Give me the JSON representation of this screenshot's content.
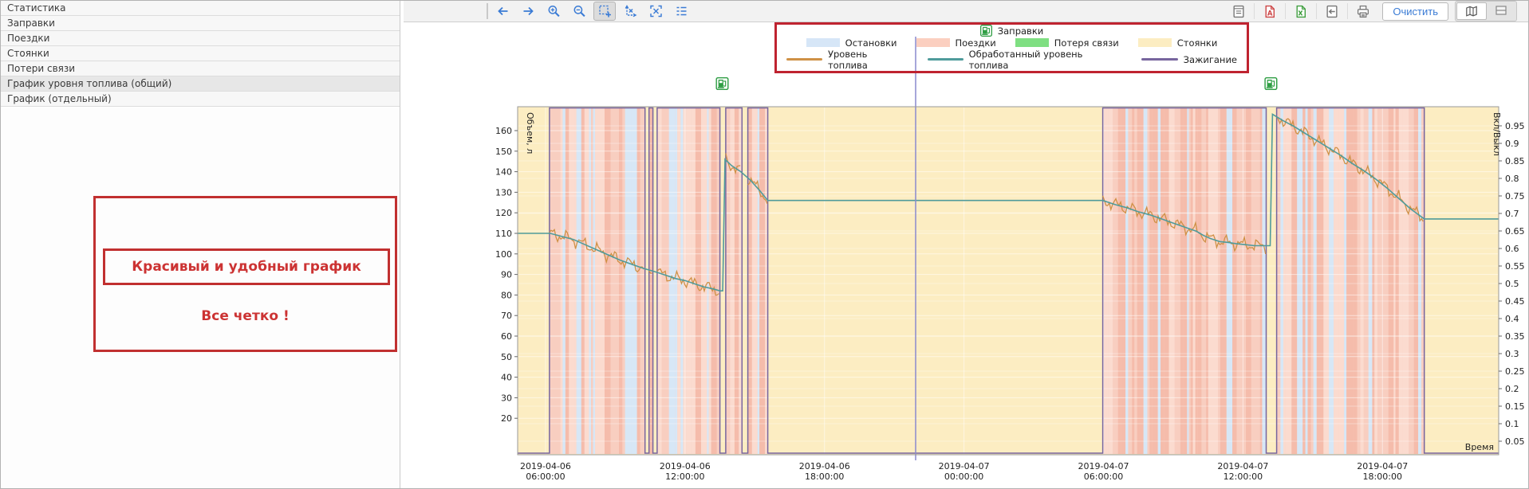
{
  "sidebar": {
    "items": [
      {
        "label": "Статистика",
        "selected": false
      },
      {
        "label": "Заправки",
        "selected": false
      },
      {
        "label": "Поездки",
        "selected": false
      },
      {
        "label": "Стоянки",
        "selected": false
      },
      {
        "label": "Потери связи",
        "selected": false
      },
      {
        "label": "График уровня топлива (общий)",
        "selected": true
      },
      {
        "label": "График (отдельный)",
        "selected": false
      }
    ]
  },
  "annotation": {
    "line1": "Красивый и удобный график",
    "line2": "Все четко !",
    "color": "#c13030"
  },
  "toolbar": {
    "left_icons": [
      {
        "name": "back-arrow",
        "active": false
      },
      {
        "name": "forward-arrow",
        "active": false
      },
      {
        "name": "zoom-in",
        "active": false
      },
      {
        "name": "zoom-out",
        "active": false
      },
      {
        "name": "zoom-selection",
        "active": true
      },
      {
        "name": "reset-scale",
        "active": false
      },
      {
        "name": "fit-screen",
        "active": false
      },
      {
        "name": "chart-settings",
        "active": false
      }
    ],
    "right_icons": [
      {
        "name": "report"
      },
      {
        "name": "export-pdf"
      },
      {
        "name": "export-excel"
      },
      {
        "name": "export-file"
      },
      {
        "name": "print"
      }
    ],
    "clear_button": "Очистить",
    "view_buttons": [
      {
        "name": "map-view",
        "active": true
      },
      {
        "name": "split-view",
        "active": false
      }
    ],
    "accent_color": "#3a7bd5"
  },
  "legend": {
    "refuel_label": "Заправки",
    "areas": [
      {
        "label": "Остановки",
        "color": "#d6e6f7"
      },
      {
        "label": "Поездки",
        "color": "#fbcfc0"
      },
      {
        "label": "Потеря связи",
        "color": "#7fdf82"
      },
      {
        "label": "Стоянки",
        "color": "#fcedc2"
      }
    ],
    "lines": [
      {
        "label": "Уровень топлива",
        "color": "#cf9146"
      },
      {
        "label": "Обработанный уровень топлива",
        "color": "#4f9b9b"
      },
      {
        "label": "Зажигание",
        "color": "#77659e"
      }
    ],
    "border_color": "#bf2330"
  },
  "chart_data": {
    "type": "line",
    "x_axis": {
      "label": "Время",
      "range_hours": [
        4.8,
        47.0
      ],
      "ticks": [
        {
          "hour": 6,
          "line1": "2019-04-06",
          "line2": "06:00:00"
        },
        {
          "hour": 12,
          "line1": "2019-04-06",
          "line2": "12:00:00"
        },
        {
          "hour": 18,
          "line1": "2019-04-06",
          "line2": "18:00:00"
        },
        {
          "hour": 24,
          "line1": "2019-04-07",
          "line2": "00:00:00"
        },
        {
          "hour": 30,
          "line1": "2019-04-07",
          "line2": "06:00:00"
        },
        {
          "hour": 36,
          "line1": "2019-04-07",
          "line2": "12:00:00"
        },
        {
          "hour": 42,
          "line1": "2019-04-07",
          "line2": "18:00:00"
        }
      ]
    },
    "left_axis": {
      "label": "Объем, л",
      "ticks": [
        160,
        150,
        140,
        130,
        120,
        110,
        100,
        90,
        80,
        70,
        60,
        50,
        40,
        30,
        20
      ]
    },
    "right_axis": {
      "label": "Вкл/Выкл",
      "ticks": [
        0.95,
        0.9,
        0.85,
        0.8,
        0.75,
        0.7,
        0.65,
        0.6,
        0.55,
        0.5,
        0.45,
        0.4,
        0.35,
        0.3,
        0.25,
        0.2,
        0.15,
        0.1,
        0.05
      ]
    },
    "parking_color": "#fcedc2",
    "trip_colors": {
      "base": "#f8cec0",
      "dark": "#f5bcab",
      "light": "#fbdbcf",
      "stop": "#d7e7f6"
    },
    "trips_hours": [
      [
        6.17,
        10.28
      ],
      [
        10.45,
        10.62
      ],
      [
        10.8,
        13.5
      ],
      [
        13.75,
        14.45
      ],
      [
        14.7,
        15.56
      ],
      [
        29.97,
        37.0
      ],
      [
        37.45,
        43.8
      ]
    ],
    "refuel_hours": [
      13.6,
      37.2
    ],
    "crosshair_hour": 21.92,
    "ignition_color": "#77659e",
    "crosshair_color": "#8a8ace",
    "series": [
      {
        "name": "Уровень топлива",
        "color": "#cf9146",
        "derived_from": "Обработанный уровень топлива",
        "noise_liters": 2.2
      },
      {
        "name": "Обработанный уровень топлива",
        "color": "#4f9b9b",
        "points": [
          [
            4.8,
            110
          ],
          [
            6.2,
            110
          ],
          [
            6.7,
            108.5
          ],
          [
            7.2,
            107
          ],
          [
            7.7,
            104.5
          ],
          [
            8.2,
            102
          ],
          [
            8.7,
            99.5
          ],
          [
            9.2,
            97
          ],
          [
            9.7,
            95
          ],
          [
            10.2,
            93
          ],
          [
            10.5,
            92
          ],
          [
            10.8,
            91
          ],
          [
            11.2,
            89.5
          ],
          [
            11.6,
            88
          ],
          [
            12,
            87
          ],
          [
            12.4,
            85.5
          ],
          [
            12.8,
            84
          ],
          [
            13.2,
            83
          ],
          [
            13.5,
            82
          ],
          [
            13.62,
            82
          ],
          [
            13.72,
            146
          ],
          [
            14,
            143
          ],
          [
            14.4,
            140
          ],
          [
            14.8,
            136
          ],
          [
            15.2,
            131
          ],
          [
            15.56,
            126
          ],
          [
            29.97,
            126
          ],
          [
            30.5,
            124
          ],
          [
            31,
            122.5
          ],
          [
            31.5,
            120.5
          ],
          [
            32,
            119
          ],
          [
            32.5,
            117
          ],
          [
            33,
            115
          ],
          [
            33.5,
            113
          ],
          [
            34,
            111
          ],
          [
            34.3,
            109
          ],
          [
            34.6,
            107.5
          ],
          [
            35,
            106
          ],
          [
            35.4,
            105.5
          ],
          [
            35.7,
            105
          ],
          [
            36.1,
            104.5
          ],
          [
            36.5,
            104
          ],
          [
            36.9,
            104
          ],
          [
            37.17,
            104
          ],
          [
            37.27,
            168
          ],
          [
            37.7,
            165
          ],
          [
            38.2,
            162
          ],
          [
            38.7,
            158.5
          ],
          [
            39.2,
            155
          ],
          [
            39.7,
            151.5
          ],
          [
            40.2,
            148
          ],
          [
            40.7,
            144
          ],
          [
            41.2,
            140.5
          ],
          [
            41.7,
            136.5
          ],
          [
            42.2,
            132
          ],
          [
            42.7,
            127
          ],
          [
            43.2,
            122
          ],
          [
            43.8,
            117
          ],
          [
            47,
            117
          ]
        ]
      },
      {
        "name": "Зажигание",
        "color": "#77659e",
        "shape": "square-wave",
        "high_during": "trips_hours"
      }
    ]
  }
}
